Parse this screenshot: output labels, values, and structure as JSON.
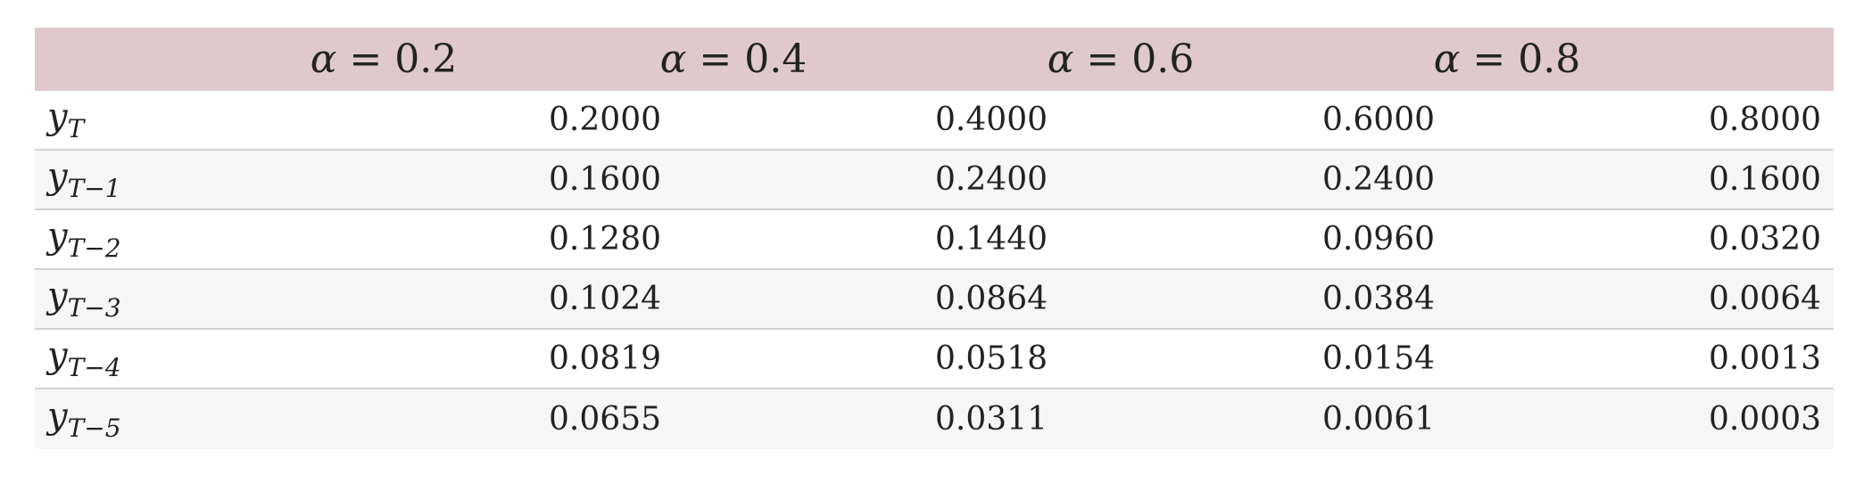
{
  "table": {
    "header": {
      "columns": [
        "α = 0.2",
        "α = 0.4",
        "α = 0.6",
        "α = 0.8"
      ]
    },
    "rows": [
      {
        "label_var": "y",
        "label_sub": "T",
        "values": [
          "0.2000",
          "0.4000",
          "0.6000",
          "0.8000"
        ]
      },
      {
        "label_var": "y",
        "label_sub": "T−1",
        "values": [
          "0.1600",
          "0.2400",
          "0.2400",
          "0.1600"
        ]
      },
      {
        "label_var": "y",
        "label_sub": "T−2",
        "values": [
          "0.1280",
          "0.1440",
          "0.0960",
          "0.0320"
        ]
      },
      {
        "label_var": "y",
        "label_sub": "T−3",
        "values": [
          "0.1024",
          "0.0864",
          "0.0384",
          "0.0064"
        ]
      },
      {
        "label_var": "y",
        "label_sub": "T−4",
        "values": [
          "0.0819",
          "0.0518",
          "0.0154",
          "0.0013"
        ]
      },
      {
        "label_var": "y",
        "label_sub": "T−5",
        "values": [
          "0.0655",
          "0.0311",
          "0.0061",
          "0.0003"
        ]
      }
    ],
    "colors": {
      "header_bg": "#dfc9cc",
      "row_alt_bg": "#f6f6f6",
      "row_bg": "#ffffff",
      "border": "#d2d2d2"
    }
  }
}
